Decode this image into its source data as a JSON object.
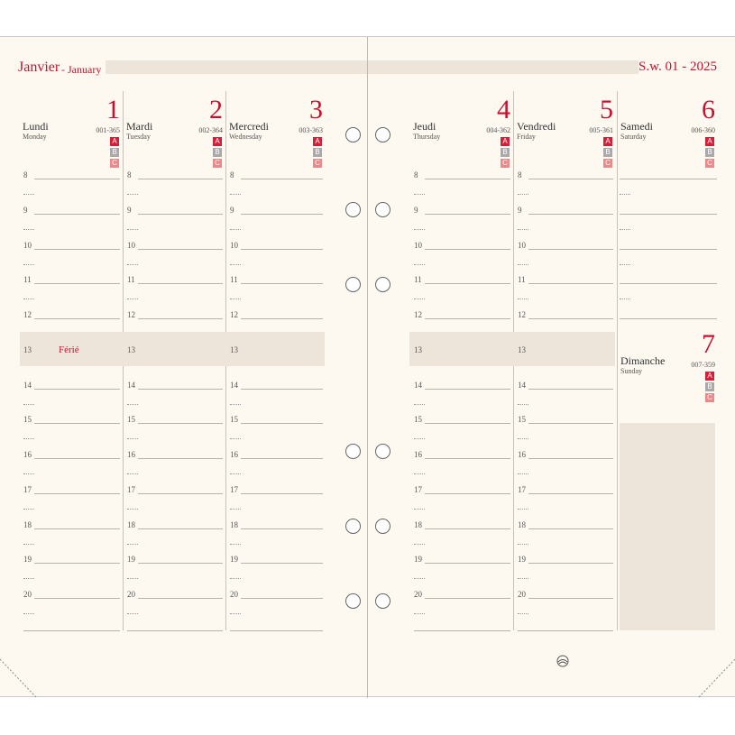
{
  "header": {
    "month_fr": "Janvier",
    "month_en": "- January",
    "week": "S.w. 01 - 2025"
  },
  "days": [
    {
      "fr": "Lundi",
      "en": "Monday",
      "num": 1,
      "code": "001-365",
      "note": "Férié"
    },
    {
      "fr": "Mardi",
      "en": "Tuesday",
      "num": 2,
      "code": "002-364"
    },
    {
      "fr": "Mercredi",
      "en": "Wednesday",
      "num": 3,
      "code": "003-363"
    },
    {
      "fr": "Jeudi",
      "en": "Thursday",
      "num": 4,
      "code": "004-362"
    },
    {
      "fr": "Vendredi",
      "en": "Friday",
      "num": 5,
      "code": "005-361"
    },
    {
      "fr": "Samedi",
      "en": "Saturday",
      "num": 6,
      "code": "006-360"
    },
    {
      "fr": "Dimanche",
      "en": "Sunday",
      "num": 7,
      "code": "007-359"
    }
  ],
  "abc": [
    "A",
    "B",
    "C"
  ],
  "hours": [
    8,
    9,
    10,
    11,
    12,
    13,
    14,
    15,
    16,
    17,
    18,
    19,
    20
  ]
}
